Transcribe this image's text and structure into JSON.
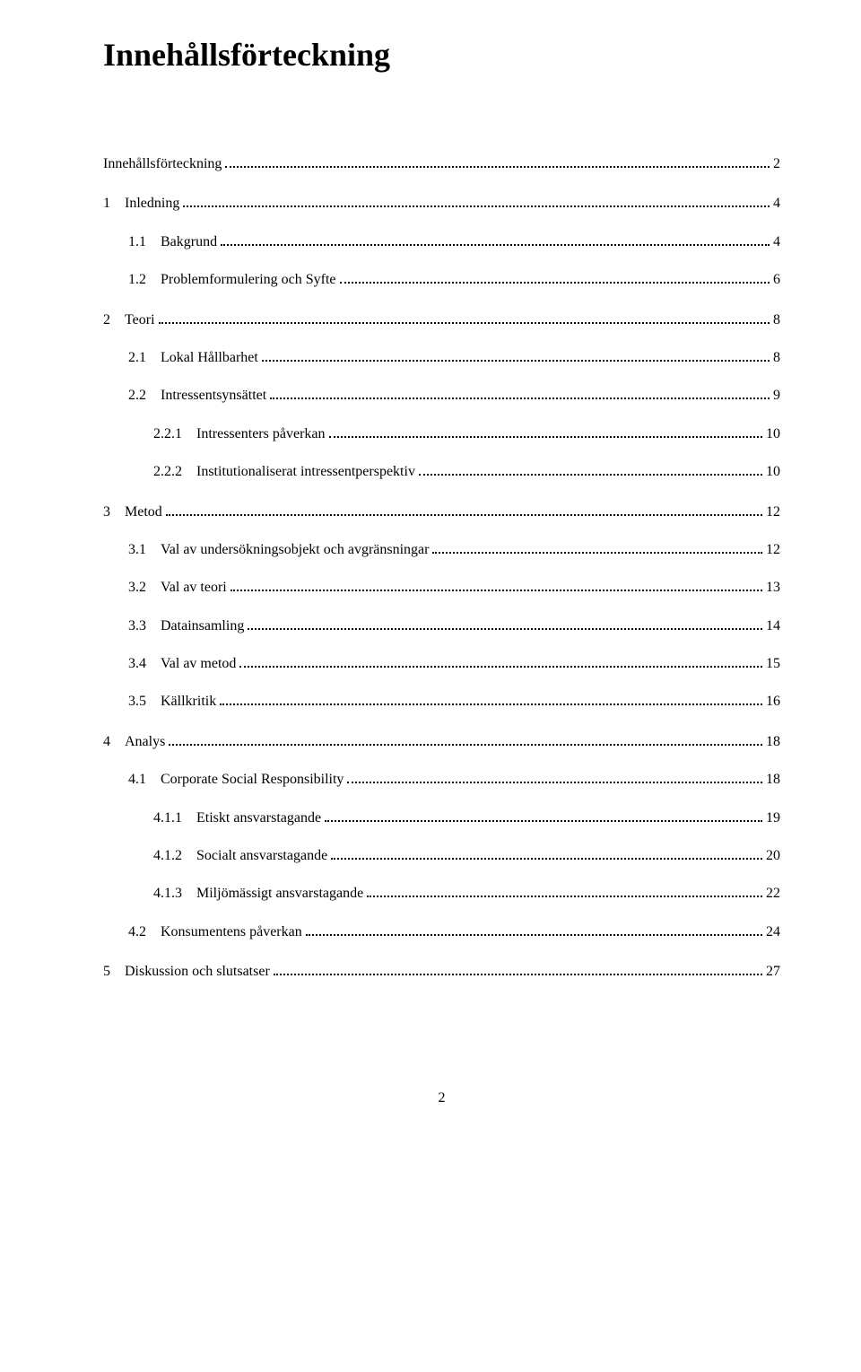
{
  "title": "Innehållsförteckning",
  "entries": [
    {
      "num": "",
      "label": "Innehållsförteckning",
      "page": "2",
      "indent": 0,
      "gap": false
    },
    {
      "num": "1",
      "label": "Inledning",
      "page": "4",
      "indent": 0,
      "gap": true
    },
    {
      "num": "1.1",
      "label": "Bakgrund",
      "page": "4",
      "indent": 1,
      "gap": false
    },
    {
      "num": "1.2",
      "label": "Problemformulering och Syfte",
      "page": "6",
      "indent": 1,
      "gap": false
    },
    {
      "num": "2",
      "label": "Teori",
      "page": "8",
      "indent": 0,
      "gap": true
    },
    {
      "num": "2.1",
      "label": "Lokal Hållbarhet",
      "page": "8",
      "indent": 1,
      "gap": false
    },
    {
      "num": "2.2",
      "label": "Intressentsynsättet",
      "page": "9",
      "indent": 1,
      "gap": false
    },
    {
      "num": "2.2.1",
      "label": "Intressenters påverkan",
      "page": "10",
      "indent": 2,
      "gap": false
    },
    {
      "num": "2.2.2",
      "label": "Institutionaliserat intressentperspektiv",
      "page": "10",
      "indent": 2,
      "gap": false
    },
    {
      "num": "3",
      "label": "Metod",
      "page": "12",
      "indent": 0,
      "gap": true
    },
    {
      "num": "3.1",
      "label": "Val av undersökningsobjekt och avgränsningar",
      "page": "12",
      "indent": 1,
      "gap": false
    },
    {
      "num": "3.2",
      "label": "Val av teori",
      "page": "13",
      "indent": 1,
      "gap": false
    },
    {
      "num": "3.3",
      "label": "Datainsamling",
      "page": "14",
      "indent": 1,
      "gap": false
    },
    {
      "num": "3.4",
      "label": "Val av metod",
      "page": "15",
      "indent": 1,
      "gap": false
    },
    {
      "num": "3.5",
      "label": "Källkritik",
      "page": "16",
      "indent": 1,
      "gap": false
    },
    {
      "num": "4",
      "label": "Analys",
      "page": "18",
      "indent": 0,
      "gap": true
    },
    {
      "num": "4.1",
      "label": "Corporate Social Responsibility",
      "page": "18",
      "indent": 1,
      "gap": false
    },
    {
      "num": "4.1.1",
      "label": "Etiskt ansvarstagande",
      "page": "19",
      "indent": 2,
      "gap": false
    },
    {
      "num": "4.1.2",
      "label": "Socialt ansvarstagande",
      "page": "20",
      "indent": 2,
      "gap": false
    },
    {
      "num": "4.1.3",
      "label": "Miljömässigt ansvarstagande",
      "page": "22",
      "indent": 2,
      "gap": false
    },
    {
      "num": "4.2",
      "label": "Konsumentens påverkan",
      "page": "24",
      "indent": 1,
      "gap": false
    },
    {
      "num": "5",
      "label": "Diskussion och slutsatser",
      "page": "27",
      "indent": 0,
      "gap": true
    }
  ],
  "footer_page": "2"
}
